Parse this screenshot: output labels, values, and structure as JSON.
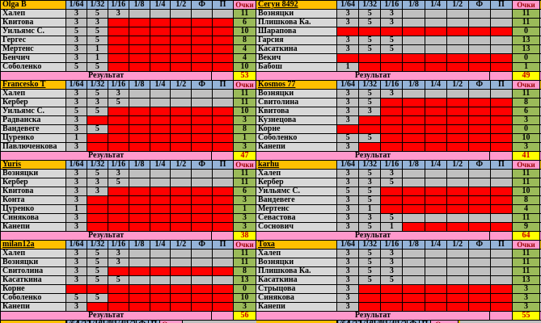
{
  "columns": [
    "1/64",
    "1/32",
    "1/16",
    "1/8",
    "1/4",
    "1/2",
    "Ф",
    "П"
  ],
  "points_header": "Очки",
  "result_label": "Результат",
  "colors": {
    "header_name_bg": "#FFC000",
    "header_col_bg": "#95B3D7",
    "points_header_bg": "#FF99CC",
    "points_header_text": "#990000",
    "label_bg": "#D8D8D8",
    "value_bg": "#C0C0C0",
    "eliminated_bg": "#FF0000",
    "points_bg": "#9BBB59",
    "result_row_bg": "#FF99CC",
    "result_value_bg": "#FFFF00",
    "result_value_text": "#CC0000",
    "grid": "#000000"
  },
  "blocks": [
    {
      "player": "Olga B",
      "underline": false,
      "total": 53,
      "rows": [
        {
          "name": "Халеп",
          "scores": [
            3,
            5,
            3
          ],
          "red_from": null,
          "points": 11
        },
        {
          "name": "Квитова",
          "scores": [
            3,
            3
          ],
          "red_from": 2,
          "points": 6
        },
        {
          "name": "Уильямс С.",
          "scores": [
            5,
            5
          ],
          "red_from": 2,
          "points": 10
        },
        {
          "name": "Гергес",
          "scores": [
            3,
            5
          ],
          "red_from": 2,
          "points": 8
        },
        {
          "name": "Мертенс",
          "scores": [
            3,
            1
          ],
          "red_from": 2,
          "points": 4
        },
        {
          "name": "Бенчич",
          "scores": [
            3,
            1
          ],
          "red_from": 2,
          "points": 4
        },
        {
          "name": "Соболенко",
          "scores": [
            5,
            5
          ],
          "red_from": 2,
          "points": 10
        }
      ]
    },
    {
      "player": "Сегун 8492",
      "underline": true,
      "total": 49,
      "rows": [
        {
          "name": "Возняцки",
          "scores": [
            3,
            5,
            3
          ],
          "red_from": null,
          "points": 11
        },
        {
          "name": "Плишкова Ка.",
          "scores": [
            3,
            5,
            3
          ],
          "red_from": null,
          "points": 11
        },
        {
          "name": "Шарапова",
          "scores": [],
          "red_from": 0,
          "points": 0
        },
        {
          "name": "Гарсия",
          "scores": [
            3,
            5,
            5
          ],
          "red_from": null,
          "points": 13
        },
        {
          "name": "Касаткина",
          "scores": [
            3,
            5,
            5
          ],
          "red_from": null,
          "points": 13
        },
        {
          "name": "Векич",
          "scores": [],
          "red_from": 0,
          "points": 0
        },
        {
          "name": "Бабош",
          "scores": [
            1
          ],
          "red_from": 1,
          "points": 1
        }
      ]
    },
    {
      "player": "Francesko T",
      "underline": true,
      "total": 47,
      "rows": [
        {
          "name": "Халеп",
          "scores": [
            3,
            5,
            3
          ],
          "red_from": null,
          "points": 11
        },
        {
          "name": "Кербер",
          "scores": [
            3,
            3,
            5
          ],
          "red_from": null,
          "points": 11
        },
        {
          "name": "Уильямс С.",
          "scores": [
            5,
            5
          ],
          "red_from": 2,
          "points": 10
        },
        {
          "name": "Радванска",
          "scores": [
            3
          ],
          "red_from": 1,
          "points": 3
        },
        {
          "name": "Вандевеге",
          "scores": [
            3,
            5
          ],
          "red_from": 2,
          "points": 8
        },
        {
          "name": "Цуренко",
          "scores": [
            1
          ],
          "red_from": 1,
          "points": 1
        },
        {
          "name": "Павлюченкова",
          "scores": [
            3
          ],
          "red_from": 1,
          "points": 3
        }
      ]
    },
    {
      "player": "Kosmos 77",
      "underline": true,
      "total": 41,
      "rows": [
        {
          "name": "Возняцки",
          "scores": [
            3,
            5,
            3
          ],
          "red_from": null,
          "points": 11
        },
        {
          "name": "Свитолина",
          "scores": [
            3,
            5
          ],
          "red_from": 2,
          "points": 8
        },
        {
          "name": "Квитова",
          "scores": [
            3,
            3
          ],
          "red_from": 2,
          "points": 6
        },
        {
          "name": "Кузнецова",
          "scores": [
            3
          ],
          "red_from": 1,
          "points": 3
        },
        {
          "name": "Корне",
          "scores": [],
          "red_from": 0,
          "points": 0
        },
        {
          "name": "Соболенко",
          "scores": [
            5,
            5
          ],
          "red_from": 2,
          "points": 10
        },
        {
          "name": "Канепи",
          "scores": [
            3
          ],
          "red_from": 1,
          "points": 3
        }
      ]
    },
    {
      "player": "Yuris",
      "underline": true,
      "total": 38,
      "rows": [
        {
          "name": "Возняцки",
          "scores": [
            3,
            5,
            3
          ],
          "red_from": null,
          "points": 11
        },
        {
          "name": "Кербер",
          "scores": [
            3,
            3,
            5
          ],
          "red_from": null,
          "points": 11
        },
        {
          "name": "Квитова",
          "scores": [
            3,
            3
          ],
          "red_from": 2,
          "points": 6
        },
        {
          "name": "Конта",
          "scores": [
            3
          ],
          "red_from": 1,
          "points": 3
        },
        {
          "name": "Цуренко",
          "scores": [
            1
          ],
          "red_from": 1,
          "points": 1
        },
        {
          "name": "Синякова",
          "scores": [
            3
          ],
          "red_from": 1,
          "points": 3
        },
        {
          "name": "Канепи",
          "scores": [
            3
          ],
          "red_from": 1,
          "points": 3
        }
      ]
    },
    {
      "player": "karhu",
      "underline": true,
      "total": 64,
      "rows": [
        {
          "name": "Халеп",
          "scores": [
            3,
            5,
            3
          ],
          "red_from": null,
          "points": 11
        },
        {
          "name": "Кербер",
          "scores": [
            3,
            3,
            5
          ],
          "red_from": null,
          "points": 11
        },
        {
          "name": "Уильямс С.",
          "scores": [
            5,
            5
          ],
          "red_from": 2,
          "points": 10
        },
        {
          "name": "Вандевеге",
          "scores": [
            3,
            5
          ],
          "red_from": 2,
          "points": 8
        },
        {
          "name": "Мертенс",
          "scores": [
            3,
            1
          ],
          "red_from": 2,
          "points": 4
        },
        {
          "name": "Севастова",
          "scores": [
            3,
            3,
            5
          ],
          "red_from": null,
          "points": 11
        },
        {
          "name": "Соснович",
          "scores": [
            3,
            5,
            1
          ],
          "red_from": 3,
          "points": 9
        }
      ]
    },
    {
      "player": "milan12a",
      "underline": true,
      "total": 56,
      "rows": [
        {
          "name": "Халеп",
          "scores": [
            3,
            5,
            3
          ],
          "red_from": null,
          "points": 11
        },
        {
          "name": "Возняцки",
          "scores": [
            3,
            5,
            3
          ],
          "red_from": null,
          "points": 11
        },
        {
          "name": "Свитолина",
          "scores": [
            3,
            5
          ],
          "red_from": 2,
          "points": 8
        },
        {
          "name": "Касаткина",
          "scores": [
            3,
            5,
            5
          ],
          "red_from": null,
          "points": 13
        },
        {
          "name": "Корне",
          "scores": [],
          "red_from": 0,
          "points": 0
        },
        {
          "name": "Соболенко",
          "scores": [
            5,
            5
          ],
          "red_from": 2,
          "points": 10
        },
        {
          "name": "Канепи",
          "scores": [
            3
          ],
          "red_from": 1,
          "points": 3
        }
      ]
    },
    {
      "player": "Тоха",
      "underline": true,
      "total": 55,
      "rows": [
        {
          "name": "Халеп",
          "scores": [
            3,
            5,
            3
          ],
          "red_from": null,
          "points": 11
        },
        {
          "name": "Возняцки",
          "scores": [
            3,
            5,
            3
          ],
          "red_from": null,
          "points": 11
        },
        {
          "name": "Плишкова Ка.",
          "scores": [
            3,
            5,
            3
          ],
          "red_from": null,
          "points": 11
        },
        {
          "name": "Касаткина",
          "scores": [
            3,
            5,
            5
          ],
          "red_from": null,
          "points": 13
        },
        {
          "name": "Стрыцова",
          "scores": [
            3
          ],
          "red_from": 1,
          "points": 3
        },
        {
          "name": "Синякова",
          "scores": [
            3
          ],
          "red_from": 1,
          "points": 3
        },
        {
          "name": "Канепи",
          "scores": [
            3
          ],
          "red_from": 1,
          "points": 3
        }
      ]
    }
  ]
}
